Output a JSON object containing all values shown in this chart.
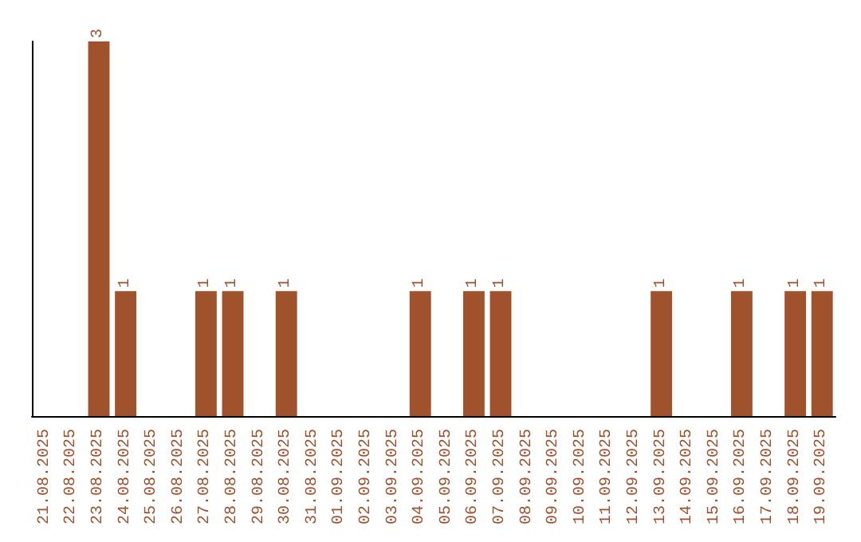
{
  "chart_data": {
    "type": "bar",
    "categories": [
      "21.08.2025",
      "22.08.2025",
      "23.08.2025",
      "24.08.2025",
      "25.08.2025",
      "26.08.2025",
      "27.08.2025",
      "28.08.2025",
      "29.08.2025",
      "30.08.2025",
      "31.08.2025",
      "01.09.2025",
      "02.09.2025",
      "03.09.2025",
      "04.09.2025",
      "05.09.2025",
      "06.09.2025",
      "07.09.2025",
      "08.09.2025",
      "09.09.2025",
      "10.09.2025",
      "11.09.2025",
      "12.09.2025",
      "13.09.2025",
      "14.09.2025",
      "15.09.2025",
      "16.09.2025",
      "17.09.2025",
      "18.09.2025",
      "19.09.2025"
    ],
    "values": [
      0,
      0,
      3,
      1,
      0,
      0,
      1,
      1,
      0,
      1,
      0,
      0,
      0,
      0,
      1,
      0,
      1,
      1,
      0,
      0,
      0,
      0,
      0,
      1,
      0,
      0,
      1,
      0,
      1,
      1
    ],
    "value_labels": [
      null,
      null,
      "3",
      "1",
      null,
      null,
      "1",
      "1",
      null,
      "1",
      null,
      null,
      null,
      null,
      "1",
      null,
      "1",
      "1",
      null,
      null,
      null,
      null,
      null,
      "1",
      null,
      null,
      "1",
      null,
      "1",
      "1"
    ],
    "color": "#a0522d",
    "grid": false,
    "tick_labels": "x"
  }
}
